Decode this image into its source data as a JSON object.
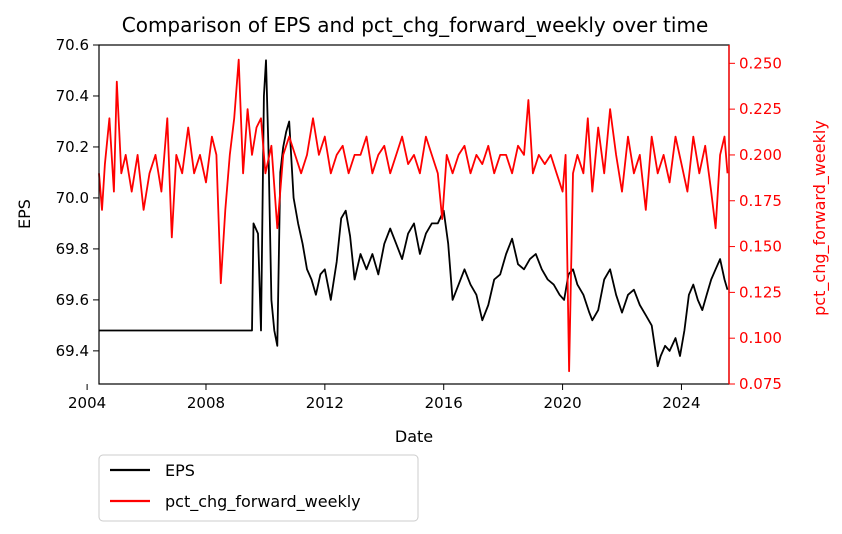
{
  "chart_data": {
    "type": "line",
    "title": "Comparison of EPS and pct_chg_forward_weekly over time",
    "xlabel": "Date",
    "ylabel_left": "EPS",
    "ylabel_right": "pct_chg_forward_weekly",
    "xlim": [
      2004.4,
      2025.6
    ],
    "ylim_left": [
      69.27,
      70.6
    ],
    "ylim_right": [
      0.075,
      0.26
    ],
    "x_ticks": [
      2004,
      2008,
      2012,
      2016,
      2020,
      2024
    ],
    "y_ticks_left": [
      69.4,
      69.6,
      69.8,
      70.0,
      70.2,
      70.4,
      70.6
    ],
    "y_ticks_right": [
      0.075,
      0.1,
      0.125,
      0.15,
      0.175,
      0.2,
      0.225,
      0.25
    ],
    "grid": false,
    "legend_position": "below-left",
    "legend": [
      "EPS",
      "pct_chg_forward_weekly"
    ],
    "series": [
      {
        "name": "EPS",
        "axis": "left",
        "color": "#000000",
        "points": [
          [
            2004.4,
            69.48
          ],
          [
            2009.55,
            69.48
          ],
          [
            2009.6,
            69.9
          ],
          [
            2009.75,
            69.86
          ],
          [
            2009.85,
            69.48
          ],
          [
            2009.95,
            70.4
          ],
          [
            2010.02,
            70.54
          ],
          [
            2010.1,
            70.2
          ],
          [
            2010.2,
            69.6
          ],
          [
            2010.3,
            69.48
          ],
          [
            2010.4,
            69.42
          ],
          [
            2010.5,
            70.1
          ],
          [
            2010.6,
            70.2
          ],
          [
            2010.7,
            70.26
          ],
          [
            2010.8,
            70.3
          ],
          [
            2010.95,
            70.0
          ],
          [
            2011.1,
            69.9
          ],
          [
            2011.25,
            69.82
          ],
          [
            2011.4,
            69.72
          ],
          [
            2011.55,
            69.68
          ],
          [
            2011.7,
            69.62
          ],
          [
            2011.85,
            69.7
          ],
          [
            2012.0,
            69.72
          ],
          [
            2012.2,
            69.6
          ],
          [
            2012.4,
            69.75
          ],
          [
            2012.55,
            69.92
          ],
          [
            2012.7,
            69.95
          ],
          [
            2012.85,
            69.85
          ],
          [
            2013.0,
            69.68
          ],
          [
            2013.2,
            69.78
          ],
          [
            2013.4,
            69.72
          ],
          [
            2013.6,
            69.78
          ],
          [
            2013.8,
            69.7
          ],
          [
            2014.0,
            69.82
          ],
          [
            2014.2,
            69.88
          ],
          [
            2014.4,
            69.82
          ],
          [
            2014.6,
            69.76
          ],
          [
            2014.8,
            69.86
          ],
          [
            2015.0,
            69.9
          ],
          [
            2015.2,
            69.78
          ],
          [
            2015.4,
            69.86
          ],
          [
            2015.6,
            69.9
          ],
          [
            2015.8,
            69.9
          ],
          [
            2016.0,
            69.95
          ],
          [
            2016.15,
            69.82
          ],
          [
            2016.3,
            69.6
          ],
          [
            2016.5,
            69.66
          ],
          [
            2016.7,
            69.72
          ],
          [
            2016.9,
            69.66
          ],
          [
            2017.1,
            69.62
          ],
          [
            2017.3,
            69.52
          ],
          [
            2017.5,
            69.58
          ],
          [
            2017.7,
            69.68
          ],
          [
            2017.9,
            69.7
          ],
          [
            2018.1,
            69.78
          ],
          [
            2018.3,
            69.84
          ],
          [
            2018.5,
            69.74
          ],
          [
            2018.7,
            69.72
          ],
          [
            2018.9,
            69.76
          ],
          [
            2019.1,
            69.78
          ],
          [
            2019.3,
            69.72
          ],
          [
            2019.5,
            69.68
          ],
          [
            2019.7,
            69.66
          ],
          [
            2019.9,
            69.62
          ],
          [
            2020.05,
            69.6
          ],
          [
            2020.2,
            69.7
          ],
          [
            2020.35,
            69.72
          ],
          [
            2020.5,
            69.66
          ],
          [
            2020.7,
            69.62
          ],
          [
            2020.9,
            69.55
          ],
          [
            2021.0,
            69.52
          ],
          [
            2021.2,
            69.56
          ],
          [
            2021.4,
            69.68
          ],
          [
            2021.6,
            69.72
          ],
          [
            2021.8,
            69.62
          ],
          [
            2022.0,
            69.55
          ],
          [
            2022.2,
            69.62
          ],
          [
            2022.4,
            69.64
          ],
          [
            2022.6,
            69.58
          ],
          [
            2022.8,
            69.54
          ],
          [
            2023.0,
            69.5
          ],
          [
            2023.1,
            69.42
          ],
          [
            2023.2,
            69.34
          ],
          [
            2023.3,
            69.38
          ],
          [
            2023.45,
            69.42
          ],
          [
            2023.6,
            69.4
          ],
          [
            2023.8,
            69.45
          ],
          [
            2023.95,
            69.38
          ],
          [
            2024.1,
            69.48
          ],
          [
            2024.25,
            69.62
          ],
          [
            2024.4,
            69.66
          ],
          [
            2024.55,
            69.6
          ],
          [
            2024.7,
            69.56
          ],
          [
            2024.85,
            69.62
          ],
          [
            2025.0,
            69.68
          ],
          [
            2025.15,
            69.72
          ],
          [
            2025.3,
            69.76
          ],
          [
            2025.45,
            69.68
          ],
          [
            2025.55,
            69.64
          ]
        ]
      },
      {
        "name": "pct_chg_forward_weekly",
        "axis": "right",
        "color": "#ff0000",
        "points": [
          [
            2004.4,
            0.19
          ],
          [
            2004.5,
            0.17
          ],
          [
            2004.6,
            0.195
          ],
          [
            2004.75,
            0.22
          ],
          [
            2004.9,
            0.18
          ],
          [
            2005.0,
            0.24
          ],
          [
            2005.15,
            0.19
          ],
          [
            2005.3,
            0.2
          ],
          [
            2005.5,
            0.18
          ],
          [
            2005.7,
            0.2
          ],
          [
            2005.9,
            0.17
          ],
          [
            2006.1,
            0.19
          ],
          [
            2006.3,
            0.2
          ],
          [
            2006.5,
            0.18
          ],
          [
            2006.7,
            0.22
          ],
          [
            2006.85,
            0.155
          ],
          [
            2007.0,
            0.2
          ],
          [
            2007.2,
            0.19
          ],
          [
            2007.4,
            0.215
          ],
          [
            2007.6,
            0.19
          ],
          [
            2007.8,
            0.2
          ],
          [
            2008.0,
            0.185
          ],
          [
            2008.2,
            0.21
          ],
          [
            2008.35,
            0.2
          ],
          [
            2008.5,
            0.13
          ],
          [
            2008.65,
            0.17
          ],
          [
            2008.8,
            0.2
          ],
          [
            2008.95,
            0.22
          ],
          [
            2009.1,
            0.252
          ],
          [
            2009.25,
            0.19
          ],
          [
            2009.4,
            0.225
          ],
          [
            2009.55,
            0.2
          ],
          [
            2009.7,
            0.215
          ],
          [
            2009.85,
            0.22
          ],
          [
            2010.0,
            0.19
          ],
          [
            2010.2,
            0.205
          ],
          [
            2010.4,
            0.16
          ],
          [
            2010.6,
            0.2
          ],
          [
            2010.8,
            0.21
          ],
          [
            2011.0,
            0.2
          ],
          [
            2011.2,
            0.19
          ],
          [
            2011.4,
            0.2
          ],
          [
            2011.6,
            0.22
          ],
          [
            2011.8,
            0.2
          ],
          [
            2012.0,
            0.21
          ],
          [
            2012.2,
            0.19
          ],
          [
            2012.4,
            0.2
          ],
          [
            2012.6,
            0.205
          ],
          [
            2012.8,
            0.19
          ],
          [
            2013.0,
            0.2
          ],
          [
            2013.2,
            0.2
          ],
          [
            2013.4,
            0.21
          ],
          [
            2013.6,
            0.19
          ],
          [
            2013.8,
            0.2
          ],
          [
            2014.0,
            0.205
          ],
          [
            2014.2,
            0.19
          ],
          [
            2014.4,
            0.2
          ],
          [
            2014.6,
            0.21
          ],
          [
            2014.8,
            0.195
          ],
          [
            2015.0,
            0.2
          ],
          [
            2015.2,
            0.19
          ],
          [
            2015.4,
            0.21
          ],
          [
            2015.6,
            0.2
          ],
          [
            2015.8,
            0.19
          ],
          [
            2015.95,
            0.165
          ],
          [
            2016.1,
            0.2
          ],
          [
            2016.3,
            0.19
          ],
          [
            2016.5,
            0.2
          ],
          [
            2016.7,
            0.205
          ],
          [
            2016.9,
            0.19
          ],
          [
            2017.1,
            0.2
          ],
          [
            2017.3,
            0.195
          ],
          [
            2017.5,
            0.205
          ],
          [
            2017.7,
            0.19
          ],
          [
            2017.9,
            0.2
          ],
          [
            2018.1,
            0.2
          ],
          [
            2018.3,
            0.19
          ],
          [
            2018.5,
            0.205
          ],
          [
            2018.7,
            0.2
          ],
          [
            2018.85,
            0.23
          ],
          [
            2019.0,
            0.19
          ],
          [
            2019.2,
            0.2
          ],
          [
            2019.4,
            0.195
          ],
          [
            2019.6,
            0.2
          ],
          [
            2019.8,
            0.19
          ],
          [
            2020.0,
            0.18
          ],
          [
            2020.1,
            0.2
          ],
          [
            2020.22,
            0.082
          ],
          [
            2020.35,
            0.19
          ],
          [
            2020.5,
            0.2
          ],
          [
            2020.7,
            0.19
          ],
          [
            2020.85,
            0.22
          ],
          [
            2021.0,
            0.18
          ],
          [
            2021.2,
            0.215
          ],
          [
            2021.4,
            0.19
          ],
          [
            2021.6,
            0.225
          ],
          [
            2021.8,
            0.2
          ],
          [
            2022.0,
            0.18
          ],
          [
            2022.2,
            0.21
          ],
          [
            2022.4,
            0.19
          ],
          [
            2022.6,
            0.2
          ],
          [
            2022.8,
            0.17
          ],
          [
            2023.0,
            0.21
          ],
          [
            2023.2,
            0.19
          ],
          [
            2023.4,
            0.2
          ],
          [
            2023.6,
            0.185
          ],
          [
            2023.8,
            0.21
          ],
          [
            2024.0,
            0.195
          ],
          [
            2024.2,
            0.18
          ],
          [
            2024.4,
            0.21
          ],
          [
            2024.6,
            0.19
          ],
          [
            2024.8,
            0.205
          ],
          [
            2025.0,
            0.18
          ],
          [
            2025.15,
            0.16
          ],
          [
            2025.3,
            0.2
          ],
          [
            2025.45,
            0.21
          ],
          [
            2025.55,
            0.19
          ]
        ]
      }
    ]
  }
}
